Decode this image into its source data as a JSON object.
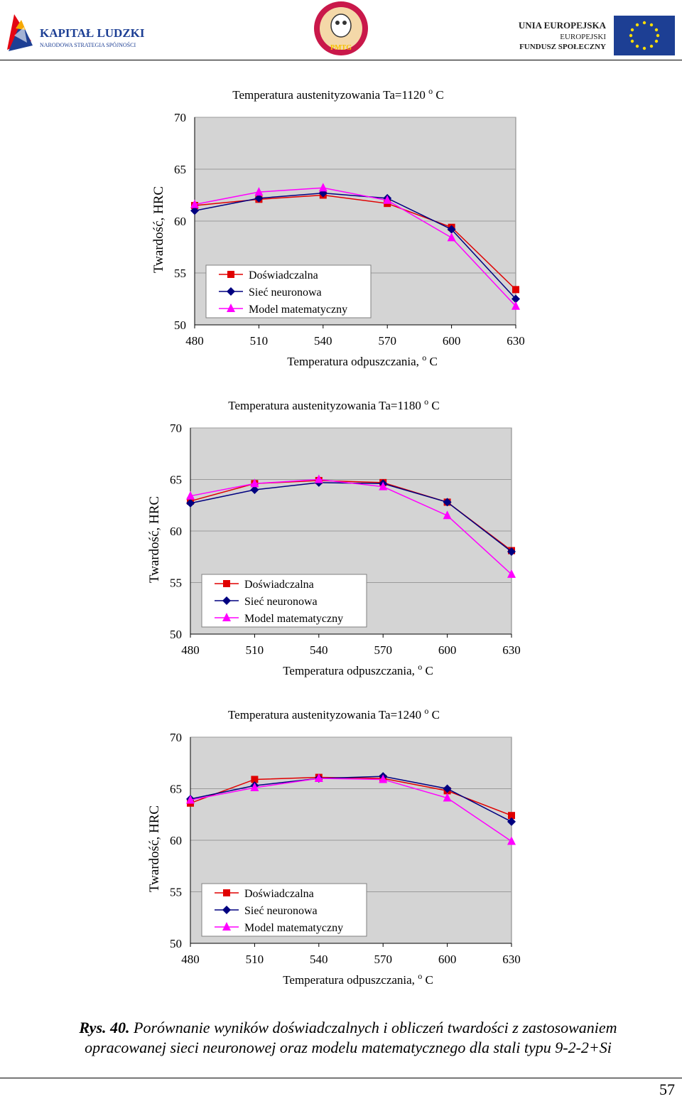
{
  "header": {
    "left_logo_text": "KAPITAŁ LUDZKI",
    "left_logo_subtext": "NARODOWA STRATEGIA SPÓJNOŚCI",
    "center_logo_text": "PMTG",
    "right_logo_line1": "UNIA EUROPEJSKA",
    "right_logo_line2": "EUROPEJSKI",
    "right_logo_line3": "FUNDUSZ SPOŁECZNY"
  },
  "chart_data": [
    {
      "type": "line",
      "title": "Temperatura austenityzowania Ta=1120 o C",
      "title_main": "Temperatura austenityzowania Ta=1120 ",
      "title_sup": "o",
      "title_end": " C",
      "xlabel_main": "Temperatura odpuszczania, ",
      "xlabel_sup": "o",
      "xlabel_end": " C",
      "ylabel": "Twardość, HRC",
      "x": [
        480,
        510,
        540,
        570,
        600,
        630
      ],
      "xlim": [
        480,
        630
      ],
      "ylim": [
        50,
        70
      ],
      "yticks": [
        50,
        55,
        60,
        65,
        70
      ],
      "grid": true,
      "legend_position": "bottom-left",
      "series": [
        {
          "name": "Doświadczalna",
          "color": "#e00000",
          "marker": "square",
          "values": [
            61.5,
            62.1,
            62.5,
            61.7,
            59.4,
            53.4
          ]
        },
        {
          "name": "Sieć neuronowa",
          "color": "#000080",
          "marker": "diamond",
          "values": [
            61.0,
            62.2,
            62.7,
            62.2,
            59.2,
            52.5
          ]
        },
        {
          "name": "Model matematyczny",
          "color": "#ff00ff",
          "marker": "triangle",
          "values": [
            61.6,
            62.8,
            63.2,
            62.0,
            58.4,
            51.8
          ]
        }
      ]
    },
    {
      "type": "line",
      "title": "Temperatura austenityzowania Ta=1180 o C",
      "title_main": "Temperatura austenityzowania Ta=1180 ",
      "title_sup": "o",
      "title_end": " C",
      "xlabel_main": "Temperatura odpuszczania, ",
      "xlabel_sup": "o",
      "xlabel_end": " C",
      "ylabel": "Twardość, HRC",
      "x": [
        480,
        510,
        540,
        570,
        600,
        630
      ],
      "xlim": [
        480,
        630
      ],
      "ylim": [
        50,
        70
      ],
      "yticks": [
        50,
        55,
        60,
        65,
        70
      ],
      "grid": true,
      "legend_position": "bottom-left",
      "series": [
        {
          "name": "Doświadczalna",
          "color": "#e00000",
          "marker": "square",
          "values": [
            62.9,
            64.6,
            64.9,
            64.7,
            62.8,
            58.1
          ]
        },
        {
          "name": "Sieć neuronowa",
          "color": "#000080",
          "marker": "diamond",
          "values": [
            62.7,
            64.0,
            64.7,
            64.6,
            62.8,
            58.0
          ]
        },
        {
          "name": "Model matematyczny",
          "color": "#ff00ff",
          "marker": "triangle",
          "values": [
            63.4,
            64.6,
            65.0,
            64.3,
            61.5,
            55.8
          ]
        }
      ]
    },
    {
      "type": "line",
      "title": "Temperatura austenityzowania Ta=1240 o C",
      "title_main": "Temperatura austenityzowania Ta=1240 ",
      "title_sup": "o",
      "title_end": " C",
      "xlabel_main": "Temperatura odpuszczania, ",
      "xlabel_sup": "o",
      "xlabel_end": " C",
      "ylabel": "Twardość, HRC",
      "x": [
        480,
        510,
        540,
        570,
        600,
        630
      ],
      "xlim": [
        480,
        630
      ],
      "ylim": [
        50,
        70
      ],
      "yticks": [
        50,
        55,
        60,
        65,
        70
      ],
      "grid": true,
      "legend_position": "bottom-left",
      "series": [
        {
          "name": "Doświadczalna",
          "color": "#e00000",
          "marker": "square",
          "values": [
            63.6,
            65.9,
            66.1,
            66.0,
            64.8,
            62.4
          ]
        },
        {
          "name": "Sieć neuronowa",
          "color": "#000080",
          "marker": "diamond",
          "values": [
            64.0,
            65.3,
            66.0,
            66.2,
            65.0,
            61.8
          ]
        },
        {
          "name": "Model matematyczny",
          "color": "#ff00ff",
          "marker": "triangle",
          "values": [
            63.9,
            65.1,
            66.0,
            65.9,
            64.1,
            59.9
          ]
        }
      ]
    }
  ],
  "caption": {
    "label": "Rys. 40.",
    "line1": " Porównanie wyników doświadczalnych i obliczeń twardości z zastosowaniem",
    "line2": "opracowanej sieci neuronowej oraz modelu matematycznego dla stali typu 9-2-2+Si"
  },
  "page_number": "57"
}
